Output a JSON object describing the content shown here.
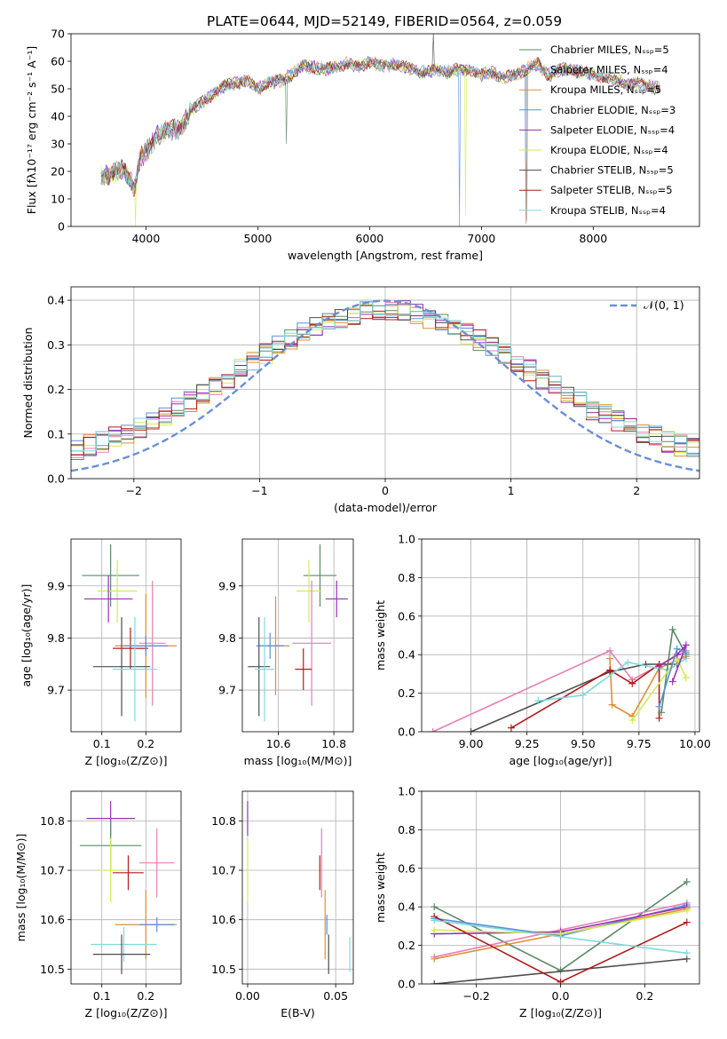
{
  "title": "PLATE=0644, MJD=52149, FIBERID=0564, z=0.059",
  "colors": {
    "Chabrier MILES": "#5a8a64",
    "Salpeter MILES": "#e47fb2",
    "Kroupa MILES": "#df8f36",
    "Chabrier ELODIE": "#5a8fd9",
    "Salpeter ELODIE": "#9c2fb6",
    "Kroupa ELODIE": "#d2ec55",
    "Chabrier STELIB": "#4d4d4d",
    "Salpeter STELIB": "#b01b1b",
    "Kroupa STELIB": "#7fdadc"
  },
  "chart_data": [
    {
      "id": "spectrum",
      "type": "line",
      "title": "PLATE=0644, MJD=52149, FIBERID=0564, z=0.059",
      "xlabel": "wavelength [Angstrom, rest frame]",
      "ylabel": "Flux [fλ10⁻¹⁷ erg cm⁻² s⁻¹ A⁻¹]",
      "xlim": [
        3330,
        8950
      ],
      "ylim": [
        0,
        70
      ],
      "xticks": [
        4000,
        5000,
        6000,
        7000,
        8000
      ],
      "yticks": [
        0,
        10,
        20,
        30,
        40,
        50,
        60,
        70
      ],
      "legend_position": "upper-right",
      "envelope": [
        [
          3600,
          18
        ],
        [
          3700,
          19
        ],
        [
          3800,
          21
        ],
        [
          3900,
          14
        ],
        [
          3950,
          25
        ],
        [
          4000,
          27
        ],
        [
          4100,
          33
        ],
        [
          4200,
          35
        ],
        [
          4300,
          35
        ],
        [
          4400,
          42
        ],
        [
          4500,
          45
        ],
        [
          4600,
          48
        ],
        [
          4700,
          51
        ],
        [
          4800,
          52
        ],
        [
          4900,
          53
        ],
        [
          5000,
          50
        ],
        [
          5100,
          52
        ],
        [
          5200,
          53
        ],
        [
          5300,
          55
        ],
        [
          5400,
          58
        ],
        [
          5500,
          58
        ],
        [
          5600,
          57
        ],
        [
          5700,
          58
        ],
        [
          5800,
          59
        ],
        [
          5900,
          58
        ],
        [
          6000,
          60
        ],
        [
          6100,
          58
        ],
        [
          6200,
          59
        ],
        [
          6300,
          58
        ],
        [
          6400,
          57
        ],
        [
          6500,
          56
        ],
        [
          6600,
          57
        ],
        [
          6700,
          56
        ],
        [
          6800,
          57
        ],
        [
          6900,
          57
        ],
        [
          7000,
          55
        ],
        [
          7100,
          56
        ],
        [
          7200,
          54
        ],
        [
          7300,
          55
        ],
        [
          7400,
          57
        ],
        [
          7500,
          59
        ],
        [
          7600,
          55
        ],
        [
          7700,
          57
        ],
        [
          7800,
          57
        ],
        [
          7900,
          56
        ],
        [
          8000,
          55
        ],
        [
          8100,
          54
        ],
        [
          8200,
          53
        ],
        [
          8300,
          52
        ],
        [
          8400,
          52
        ],
        [
          8500,
          51
        ],
        [
          8600,
          50
        ]
      ],
      "series": [
        {
          "name": "Chabrier MILES, Nₛₛₚ=5"
        },
        {
          "name": "Salpeter MILES, Nₛₛₚ=4"
        },
        {
          "name": "Kroupa MILES, Nₛₛₚ=5"
        },
        {
          "name": "Chabrier ELODIE, Nₛₛₚ=3"
        },
        {
          "name": "Salpeter ELODIE, Nₛₛₚ=4"
        },
        {
          "name": "Kroupa ELODIE, Nₛₛₚ=4"
        },
        {
          "name": "Chabrier STELIB, Nₛₛₚ=5"
        },
        {
          "name": "Salpeter STELIB, Nₛₛₚ=5"
        },
        {
          "name": "Kroupa STELIB, Nₛₛₚ=4"
        }
      ]
    },
    {
      "id": "residuals",
      "type": "line",
      "xlabel": "(data-model)/error",
      "ylabel": "Normed distribution",
      "xlim": [
        -2.5,
        2.5
      ],
      "ylim": [
        0,
        0.43
      ],
      "xticks": [
        -2,
        -1,
        0,
        1,
        2
      ],
      "yticks": [
        0.0,
        0.1,
        0.2,
        0.3,
        0.4
      ],
      "grid": true,
      "legend_position": "upper-right",
      "reference_curve": {
        "name": "𝒩(0, 1)",
        "mean": 0,
        "sigma": 1
      },
      "bin_width": 0.1
    },
    {
      "id": "age-vs-Z",
      "type": "scatter",
      "xlabel": "Z [log₁₀(Z/Z⊙)]",
      "ylabel": "age  [log₁₀(age/yr)]",
      "xlim": [
        0.03,
        0.28
      ],
      "ylim": [
        9.62,
        9.99
      ],
      "xticks": [
        0.1,
        0.2
      ],
      "yticks": [
        9.7,
        9.8,
        9.9
      ],
      "grid": true,
      "points": [
        {
          "model": "Chabrier MILES",
          "x": 0.12,
          "y": 9.92,
          "xerr": 0.065,
          "yerr": 0.06
        },
        {
          "model": "Kroupa ELODIE",
          "x": 0.135,
          "y": 9.89,
          "xerr": 0.045,
          "yerr": 0.06
        },
        {
          "model": "Salpeter ELODIE",
          "x": 0.115,
          "y": 9.875,
          "xerr": 0.055,
          "yerr": 0.045
        },
        {
          "model": "Salpeter STELIB",
          "x": 0.165,
          "y": 9.78,
          "xerr": 0.04,
          "yerr": 0.04
        },
        {
          "model": "Salpeter MILES",
          "x": 0.215,
          "y": 9.79,
          "xerr": 0.03,
          "yerr": 0.12
        },
        {
          "model": "Kroupa MILES",
          "x": 0.2,
          "y": 9.785,
          "xerr": 0.07,
          "yerr": 0.1
        },
        {
          "model": "Chabrier ELODIE",
          "x": 0.2,
          "y": 9.785,
          "xerr": 0.05,
          "yerr": 0.02
        },
        {
          "model": "Chabrier STELIB",
          "x": 0.145,
          "y": 9.745,
          "xerr": 0.065,
          "yerr": 0.095
        },
        {
          "model": "Kroupa STELIB",
          "x": 0.175,
          "y": 9.74,
          "xerr": 0.05,
          "yerr": 0.1
        }
      ]
    },
    {
      "id": "age-vs-mass",
      "type": "scatter",
      "xlabel": "mass [log₁₀(M/M⊙)]",
      "xlim": [
        10.47,
        10.87
      ],
      "ylim": [
        9.62,
        9.99
      ],
      "xticks": [
        10.6,
        10.8
      ],
      "yticks": [
        9.7,
        9.8,
        9.9
      ],
      "grid": true,
      "points": [
        {
          "model": "Chabrier MILES",
          "x": 10.75,
          "y": 9.92,
          "xerr": 0.06,
          "yerr": 0.06
        },
        {
          "model": "Kroupa ELODIE",
          "x": 10.71,
          "y": 9.89,
          "xerr": 0.045,
          "yerr": 0.06
        },
        {
          "model": "Salpeter ELODIE",
          "x": 10.81,
          "y": 9.875,
          "xerr": 0.04,
          "yerr": 0.035
        },
        {
          "model": "Salpeter MILES",
          "x": 10.72,
          "y": 9.79,
          "xerr": 0.07,
          "yerr": 0.12
        },
        {
          "model": "Kroupa MILES",
          "x": 10.59,
          "y": 9.785,
          "xerr": 0.05,
          "yerr": 0.095
        },
        {
          "model": "Chabrier ELODIE",
          "x": 10.57,
          "y": 9.785,
          "xerr": 0.05,
          "yerr": 0.025
        },
        {
          "model": "Salpeter STELIB",
          "x": 10.69,
          "y": 9.74,
          "xerr": 0.03,
          "yerr": 0.04
        },
        {
          "model": "Chabrier STELIB",
          "x": 10.53,
          "y": 9.745,
          "xerr": 0.04,
          "yerr": 0.095
        },
        {
          "model": "Kroupa STELIB",
          "x": 10.55,
          "y": 9.74,
          "xerr": 0.035,
          "yerr": 0.1
        }
      ]
    },
    {
      "id": "massweight-vs-age",
      "type": "line",
      "xlabel": "age  [log₁₀(age/yr)]",
      "ylabel": "mass weight",
      "xlim": [
        8.78,
        10.02
      ],
      "ylim": [
        0,
        1
      ],
      "xticks": [
        9.0,
        9.25,
        9.5,
        9.75,
        10.0
      ],
      "yticks": [
        0.0,
        0.2,
        0.4,
        0.6,
        0.8,
        1.0
      ],
      "grid": true,
      "series": [
        {
          "model": "Salpeter MILES",
          "points": [
            [
              8.83,
              0.0
            ],
            [
              9.62,
              0.42
            ],
            [
              9.72,
              0.27
            ],
            [
              9.96,
              0.42
            ]
          ]
        },
        {
          "model": "Kroupa MILES",
          "points": [
            [
              9.62,
              0.38
            ],
            [
              9.63,
              0.14
            ],
            [
              9.72,
              0.08
            ],
            [
              9.84,
              0.33
            ],
            [
              9.96,
              0.39
            ]
          ]
        },
        {
          "model": "Chabrier STELIB",
          "points": [
            [
              9.0,
              0.0
            ],
            [
              9.62,
              0.31
            ],
            [
              9.78,
              0.35
            ],
            [
              9.92,
              0.35
            ]
          ]
        },
        {
          "model": "Salpeter STELIB",
          "points": [
            [
              9.18,
              0.02
            ],
            [
              9.62,
              0.32
            ],
            [
              9.72,
              0.25
            ],
            [
              9.84,
              0.35
            ],
            [
              9.84,
              0.07
            ]
          ]
        },
        {
          "model": "Kroupa STELIB",
          "points": [
            [
              9.3,
              0.16
            ],
            [
              9.5,
              0.19
            ],
            [
              9.7,
              0.36
            ],
            [
              9.88,
              0.32
            ],
            [
              9.96,
              0.38
            ]
          ]
        },
        {
          "model": "Chabrier MILES",
          "points": [
            [
              9.85,
              0.1
            ],
            [
              9.9,
              0.53
            ],
            [
              9.96,
              0.4
            ]
          ]
        },
        {
          "model": "Kroupa ELODIE",
          "points": [
            [
              9.72,
              0.06
            ],
            [
              9.92,
              0.38
            ],
            [
              9.96,
              0.28
            ]
          ]
        },
        {
          "model": "Salpeter ELODIE",
          "points": [
            [
              9.84,
              0.34
            ],
            [
              9.92,
              0.4
            ],
            [
              9.96,
              0.45
            ],
            [
              9.9,
              0.26
            ]
          ]
        },
        {
          "model": "Chabrier ELODIE",
          "points": [
            [
              9.84,
              0.13
            ],
            [
              9.92,
              0.43
            ],
            [
              9.96,
              0.41
            ]
          ]
        }
      ]
    },
    {
      "id": "mass-vs-Z",
      "type": "scatter",
      "xlabel": "Z [log₁₀(Z/Z⊙)]",
      "ylabel": "mass [log₁₀(M/M⊙)]",
      "xlim": [
        0.03,
        0.28
      ],
      "ylim": [
        10.47,
        10.86
      ],
      "xticks": [
        0.1,
        0.2
      ],
      "yticks": [
        10.5,
        10.6,
        10.7,
        10.8
      ],
      "grid": true,
      "points": [
        {
          "model": "Salpeter ELODIE",
          "x": 0.12,
          "y": 10.805,
          "xerr": 0.055,
          "yerr": 0.035
        },
        {
          "model": "Chabrier MILES",
          "x": 0.12,
          "y": 10.75,
          "xerr": 0.07,
          "yerr": 0.05
        },
        {
          "model": "Salpeter MILES",
          "x": 0.225,
          "y": 10.715,
          "xerr": 0.04,
          "yerr": 0.07
        },
        {
          "model": "Kroupa ELODIE",
          "x": 0.12,
          "y": 10.7,
          "xerr": 0.025,
          "yerr": 0.065
        },
        {
          "model": "Salpeter STELIB",
          "x": 0.16,
          "y": 10.695,
          "xerr": 0.035,
          "yerr": 0.035
        },
        {
          "model": "Kroupa MILES",
          "x": 0.2,
          "y": 10.59,
          "xerr": 0.07,
          "yerr": 0.07
        },
        {
          "model": "Chabrier ELODIE",
          "x": 0.225,
          "y": 10.59,
          "xerr": 0.04,
          "yerr": 0.015
        },
        {
          "model": "Kroupa STELIB",
          "x": 0.15,
          "y": 10.55,
          "xerr": 0.075,
          "yerr": 0.035
        },
        {
          "model": "Chabrier STELIB",
          "x": 0.145,
          "y": 10.53,
          "xerr": 0.065,
          "yerr": 0.04
        }
      ]
    },
    {
      "id": "mass-vs-ebv",
      "type": "scatter",
      "xlabel": "E(B-V)",
      "xlim": [
        -0.003,
        0.06
      ],
      "ylim": [
        10.47,
        10.86
      ],
      "xticks": [
        0.0,
        0.05
      ],
      "yticks": [
        10.5,
        10.6,
        10.7,
        10.8
      ],
      "grid": true,
      "points": [
        {
          "model": "Salpeter ELODIE",
          "x": 0.0,
          "y": 10.805,
          "xerr": 0,
          "yerr": 0.035
        },
        {
          "model": "Kroupa ELODIE",
          "x": 0.0,
          "y": 10.7,
          "xerr": 0,
          "yerr": 0.065
        },
        {
          "model": "Salpeter STELIB",
          "x": 0.041,
          "y": 10.695,
          "xerr": 0,
          "yerr": 0.035
        },
        {
          "model": "Salpeter MILES",
          "x": 0.042,
          "y": 10.715,
          "xerr": 0,
          "yerr": 0.07
        },
        {
          "model": "Kroupa MILES",
          "x": 0.044,
          "y": 10.59,
          "xerr": 0,
          "yerr": 0.07
        },
        {
          "model": "Chabrier ELODIE",
          "x": 0.045,
          "y": 10.59,
          "xerr": 0,
          "yerr": 0.02
        },
        {
          "model": "Chabrier STELIB",
          "x": 0.046,
          "y": 10.53,
          "xerr": 0,
          "yerr": 0.04
        },
        {
          "model": "Kroupa STELIB",
          "x": 0.058,
          "y": 10.53,
          "xerr": 0,
          "yerr": 0.035
        }
      ]
    },
    {
      "id": "massweight-vs-Z",
      "type": "line",
      "xlabel": "Z [log₁₀(Z/Z⊙)]",
      "ylabel": "mass weight",
      "xlim": [
        -0.33,
        0.33
      ],
      "ylim": [
        0,
        1
      ],
      "xticks": [
        -0.2,
        0.0,
        0.2
      ],
      "yticks": [
        0.0,
        0.2,
        0.4,
        0.6,
        0.8,
        1.0
      ],
      "grid": true,
      "series": [
        {
          "model": "Chabrier MILES",
          "points": [
            [
              -0.3,
              0.4
            ],
            [
              0.0,
              0.07
            ],
            [
              0.3,
              0.53
            ]
          ]
        },
        {
          "model": "Salpeter MILES",
          "points": [
            [
              -0.3,
              0.14
            ],
            [
              0.0,
              0.28
            ],
            [
              0.3,
              0.42
            ]
          ]
        },
        {
          "model": "Kroupa MILES",
          "points": [
            [
              -0.3,
              0.13
            ],
            [
              0.0,
              0.26
            ],
            [
              0.3,
              0.39
            ]
          ]
        },
        {
          "model": "Chabrier ELODIE",
          "points": [
            [
              -0.3,
              0.34
            ],
            [
              0.0,
              0.25
            ],
            [
              0.3,
              0.41
            ]
          ]
        },
        {
          "model": "Salpeter ELODIE",
          "points": [
            [
              -0.3,
              0.26
            ],
            [
              0.0,
              0.27
            ],
            [
              0.3,
              0.4
            ]
          ]
        },
        {
          "model": "Kroupa ELODIE",
          "points": [
            [
              -0.3,
              0.28
            ],
            [
              0.0,
              0.26
            ],
            [
              0.3,
              0.38
            ]
          ]
        },
        {
          "model": "Chabrier STELIB",
          "points": [
            [
              -0.3,
              0.0
            ],
            [
              0.3,
              0.13
            ]
          ]
        },
        {
          "model": "Salpeter STELIB",
          "points": [
            [
              -0.3,
              0.35
            ],
            [
              0.0,
              0.01
            ],
            [
              0.3,
              0.32
            ]
          ]
        },
        {
          "model": "Kroupa STELIB",
          "points": [
            [
              -0.3,
              0.33
            ],
            [
              0.3,
              0.16
            ]
          ]
        }
      ]
    }
  ]
}
